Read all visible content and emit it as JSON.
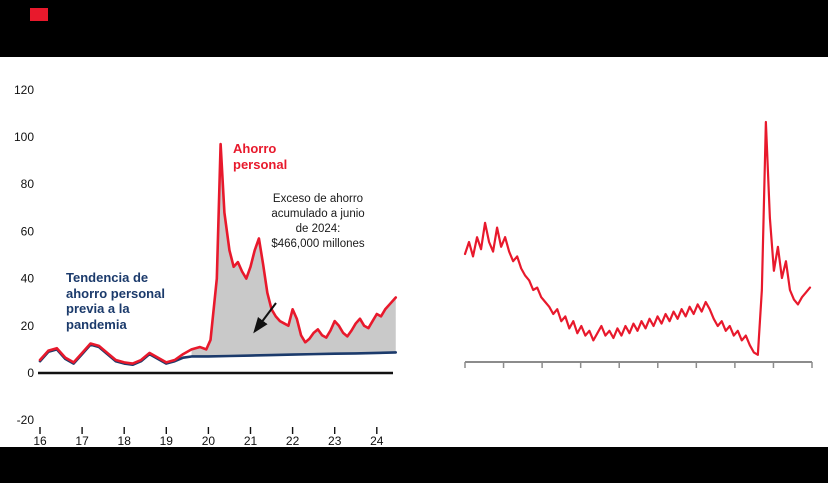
{
  "page": {
    "background": "#000000",
    "panel": "#ffffff",
    "accent_color": "#e8192c"
  },
  "chart_data": [
    {
      "type": "line",
      "title": "",
      "x_ticks": [
        "16",
        "17",
        "18",
        "19",
        "20",
        "21",
        "22",
        "23",
        "24"
      ],
      "y_ticks": [
        120,
        100,
        80,
        60,
        40,
        20,
        0,
        -20
      ],
      "ylim": [
        -20,
        120
      ],
      "xlim": [
        16,
        24.5
      ],
      "grid": false,
      "axis_color": "#111111",
      "fill_between": {
        "from_x": 19.45,
        "color": "#c9c9c9",
        "label": "excess-savings-area"
      },
      "series": [
        {
          "name": "Ahorro personal",
          "color": "#e8192c",
          "x": [
            16.0,
            16.2,
            16.4,
            16.6,
            16.8,
            17.0,
            17.2,
            17.4,
            17.6,
            17.8,
            18.0,
            18.2,
            18.4,
            18.6,
            18.8,
            19.0,
            19.2,
            19.4,
            19.6,
            19.8,
            19.95,
            20.05,
            20.2,
            20.29,
            20.38,
            20.5,
            20.6,
            20.7,
            20.8,
            20.9,
            21.0,
            21.1,
            21.2,
            21.3,
            21.4,
            21.5,
            21.6,
            21.7,
            21.8,
            21.9,
            22.0,
            22.1,
            22.2,
            22.3,
            22.4,
            22.5,
            22.6,
            22.7,
            22.8,
            22.9,
            23.0,
            23.1,
            23.2,
            23.3,
            23.4,
            23.5,
            23.6,
            23.7,
            23.8,
            23.9,
            24.0,
            24.1,
            24.2,
            24.3,
            24.45
          ],
          "values": [
            5.5,
            9.5,
            10.5,
            6.5,
            4.5,
            8.5,
            12.5,
            11.5,
            8.5,
            5.5,
            4.5,
            4,
            5.5,
            8.5,
            6.5,
            4.5,
            5.5,
            8,
            10,
            11,
            10,
            14,
            40,
            97,
            68,
            52,
            45,
            47,
            43,
            40,
            45,
            52,
            57,
            46,
            34,
            27,
            24,
            22,
            21,
            20,
            27,
            23,
            16,
            13,
            14.5,
            17,
            18.5,
            16,
            15,
            18,
            22,
            20,
            17,
            15.5,
            18,
            21,
            23,
            20,
            19,
            22,
            25,
            24,
            27,
            29,
            32
          ]
        },
        {
          "name": "Tendencia de ahorro personal previa a la pandemia",
          "color": "#1b3a6b",
          "x": [
            16.0,
            16.2,
            16.4,
            16.6,
            16.8,
            17.0,
            17.2,
            17.4,
            17.6,
            17.8,
            18.0,
            18.2,
            18.4,
            18.6,
            18.8,
            19.0,
            19.2,
            19.4,
            19.6,
            19.8,
            20.0,
            20.5,
            21.0,
            21.5,
            22.0,
            22.5,
            23.0,
            23.5,
            24.0,
            24.45
          ],
          "values": [
            5,
            9,
            10,
            6,
            4,
            8,
            12,
            11,
            8,
            5,
            4,
            3.5,
            5,
            8,
            6,
            4,
            5,
            6.5,
            7,
            7,
            7,
            7.2,
            7.4,
            7.6,
            7.8,
            8,
            8.2,
            8.3,
            8.5,
            8.7
          ]
        }
      ],
      "annotations": [
        {
          "id": "ahorro-label",
          "text": "Ahorro\npersonal",
          "color": "#e8192c"
        },
        {
          "id": "excess-note",
          "text": "Exceso de ahorro\nacumulado a junio\nde 2024:\n$466,000 millones",
          "color": "#1a1a1a"
        },
        {
          "id": "trend-label",
          "text": "Tendencia de\nahorro personal\nprevia a la\npandemia",
          "color": "#1b3a6b"
        }
      ]
    },
    {
      "type": "line",
      "title": "",
      "axis_color": "#8c8c8c",
      "axis_ticks": 10,
      "ylim": [
        0,
        110
      ],
      "series": [
        {
          "name": "serie-roja",
          "color": "#e8192c",
          "values": [
            45,
            50,
            44,
            52,
            47,
            58,
            50,
            46,
            56,
            48,
            52,
            46,
            42,
            44,
            39,
            36,
            34,
            30,
            31,
            27,
            25,
            23,
            20,
            22,
            17,
            19,
            14,
            17,
            12,
            15,
            11,
            13,
            9,
            12,
            15,
            11,
            13,
            10,
            14,
            11,
            15,
            12,
            16,
            13,
            17,
            14,
            18,
            15,
            19,
            16,
            20,
            17,
            21,
            18,
            22,
            19,
            23,
            20,
            24,
            21,
            25,
            22,
            18,
            15,
            17,
            13,
            15,
            11,
            13,
            9,
            11,
            7,
            4,
            3,
            30,
            100,
            60,
            38,
            48,
            35,
            42,
            30,
            26,
            24,
            27,
            29,
            31
          ]
        }
      ]
    }
  ]
}
